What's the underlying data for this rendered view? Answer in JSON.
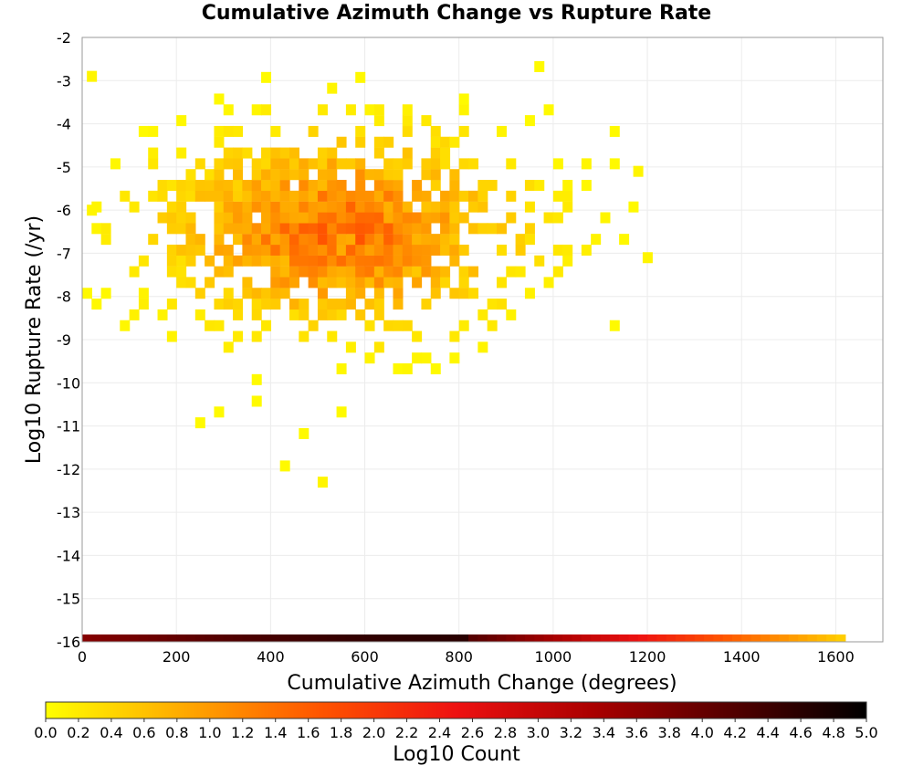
{
  "chart_data": {
    "type": "heatmap",
    "title": "Cumulative Azimuth Change vs Rupture Rate",
    "xlabel": "Cumulative Azimuth Change (degrees)",
    "ylabel": "Log10 Rupture Rate (/yr)",
    "xlim": [
      0,
      1700
    ],
    "ylim": [
      -16,
      -2
    ],
    "x_ticks": [
      0,
      200,
      400,
      600,
      800,
      1000,
      1200,
      1400,
      1600
    ],
    "y_ticks": [
      -2,
      -3,
      -4,
      -5,
      -6,
      -7,
      -8,
      -9,
      -10,
      -11,
      -12,
      -13,
      -14,
      -15,
      -16
    ],
    "grid": true,
    "bin_width_x": 20,
    "bin_height_y": 0.25,
    "density_estimate": {
      "description": "2D histogram cells of log10 count; values read off colorscale",
      "x_range_data": [
        0,
        1200
      ],
      "y_range_data": [
        -12.3,
        -2.8
      ],
      "peak": {
        "x": 550,
        "y": -6.5,
        "log10_count": 1.5
      }
    },
    "sample_cells": [
      {
        "x": 10,
        "y": -2.9,
        "z": 0.1
      },
      {
        "x": 10,
        "y": -6.0,
        "z": 0.1
      },
      {
        "x": 500,
        "y": -12.3,
        "z": 0.1
      },
      {
        "x": 1190,
        "y": -7.1,
        "z": 0.1
      },
      {
        "x": 1170,
        "y": -5.1,
        "z": 0.1
      }
    ],
    "colorbar": {
      "label": "Log10 Count",
      "min": 0.0,
      "max": 5.0,
      "ticks": [
        "0.0",
        "0.2",
        "0.4",
        "0.6",
        "0.8",
        "1.0",
        "1.2",
        "1.4",
        "1.6",
        "1.8",
        "2.0",
        "2.2",
        "2.4",
        "2.6",
        "2.8",
        "3.0",
        "3.2",
        "3.4",
        "3.6",
        "3.8",
        "4.0",
        "4.2",
        "4.4",
        "4.6",
        "4.8",
        "5.0"
      ],
      "colors": [
        "#ffff00",
        "#ffaa00",
        "#ff5500",
        "#ee1111",
        "#aa0000",
        "#550000",
        "#000000"
      ]
    },
    "bottom_row_bar": {
      "y": -16,
      "x_range": [
        0,
        1620
      ],
      "description": "row of dark-red to orange/yellow cells along y=-16"
    }
  }
}
